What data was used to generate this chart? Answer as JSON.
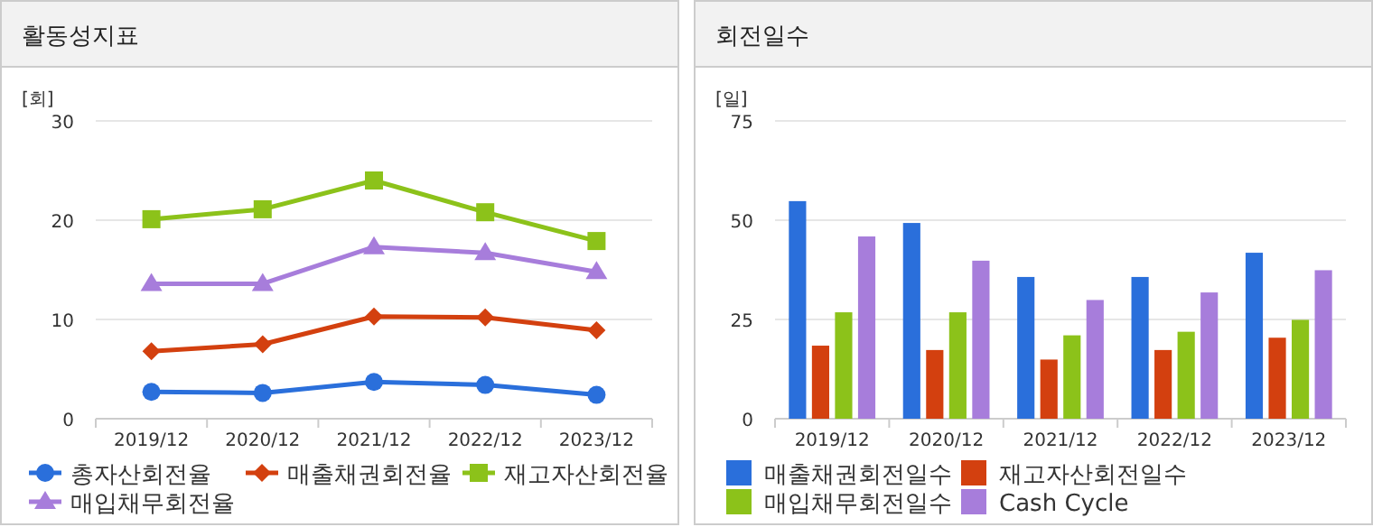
{
  "chart_data": [
    {
      "type": "line",
      "title": "활동성지표",
      "ylabel": "[회]",
      "categories": [
        "2019/12",
        "2020/12",
        "2021/12",
        "2022/12",
        "2023/12"
      ],
      "ylim": [
        0,
        30
      ],
      "yticks": [
        0,
        10,
        20,
        30
      ],
      "grid": "y",
      "legend": "bottom",
      "series": [
        {
          "name": "총자산회전율",
          "color": "#2a6fdb",
          "marker": "circle",
          "values": [
            2.7,
            2.6,
            3.7,
            3.4,
            2.4
          ]
        },
        {
          "name": "매출채권회전율",
          "color": "#d3400f",
          "marker": "diamond",
          "values": [
            6.8,
            7.5,
            10.3,
            10.2,
            8.9
          ]
        },
        {
          "name": "재고자산회전율",
          "color": "#8cc21a",
          "marker": "square",
          "values": [
            20.1,
            21.1,
            24.0,
            20.8,
            17.9
          ]
        },
        {
          "name": "매입채무회전율",
          "color": "#a77ddb",
          "marker": "triangle",
          "values": [
            13.6,
            13.6,
            17.3,
            16.7,
            14.8
          ]
        }
      ]
    },
    {
      "type": "bar",
      "title": "회전일수",
      "ylabel": "[일]",
      "categories": [
        "2019/12",
        "2020/12",
        "2021/12",
        "2022/12",
        "2023/12"
      ],
      "ylim": [
        0,
        75
      ],
      "yticks": [
        0,
        25,
        50,
        75
      ],
      "grid": "y",
      "legend": "bottom",
      "series": [
        {
          "name": "매출채권회전일수",
          "color": "#2a6fdb",
          "values": [
            54.8,
            49.3,
            35.7,
            35.7,
            41.8
          ]
        },
        {
          "name": "재고자산회전일수",
          "color": "#d3400f",
          "values": [
            18.4,
            17.3,
            14.9,
            17.3,
            20.4
          ]
        },
        {
          "name": "매입채무회전일수",
          "color": "#8cc21a",
          "values": [
            26.8,
            26.8,
            21.0,
            21.9,
            24.9
          ]
        },
        {
          "name": "Cash Cycle",
          "color": "#a77ddb",
          "values": [
            45.9,
            39.8,
            29.9,
            31.8,
            37.4
          ]
        }
      ]
    }
  ]
}
